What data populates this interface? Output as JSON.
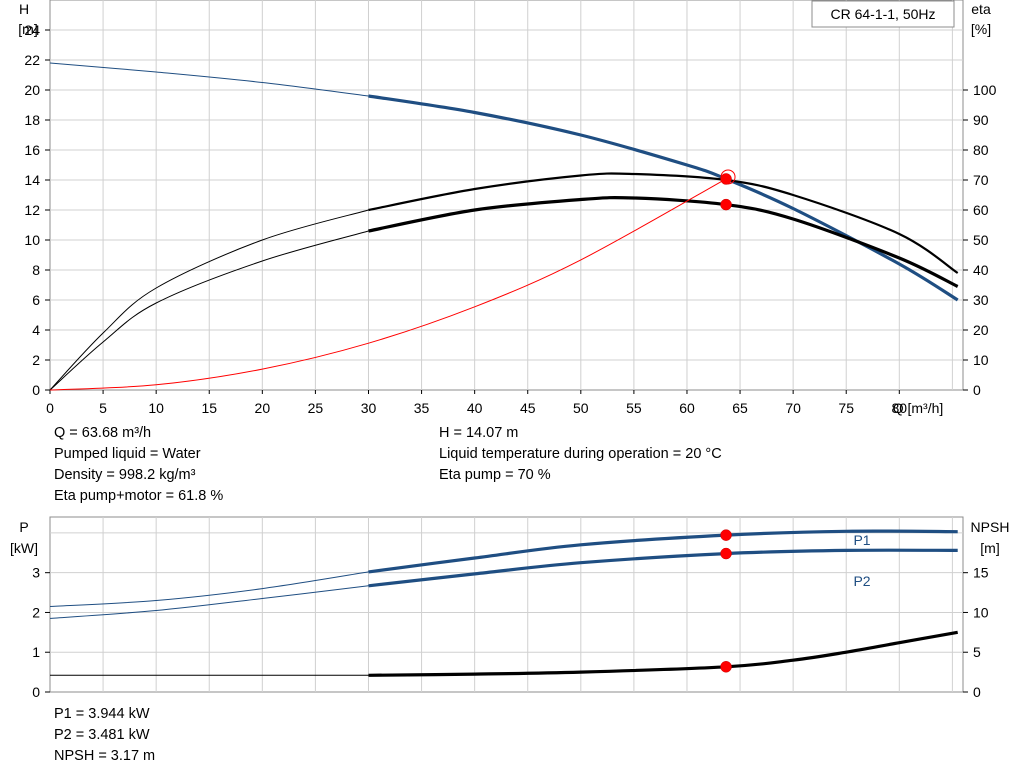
{
  "chart_data": [
    {
      "type": "line",
      "legend_box": "CR 64-1-1, 50Hz",
      "y_label_left": [
        "H",
        "[m]"
      ],
      "y_label_right": [
        "eta",
        "[%]"
      ],
      "x_label": "Q [m³/h]",
      "xlim": [
        0,
        86
      ],
      "x_ticks": [
        "0",
        "5",
        "10",
        "15",
        "20",
        "25",
        "30",
        "35",
        "40",
        "45",
        "50",
        "55",
        "60",
        "65",
        "70",
        "75",
        "80"
      ],
      "ylim_left": [
        0,
        26
      ],
      "y_ticks_left": [
        "0",
        "2",
        "4",
        "6",
        "8",
        "10",
        "12",
        "14",
        "16",
        "18",
        "20",
        "22",
        "24"
      ],
      "ylim_right": [
        0,
        130
      ],
      "y_ticks_right": [
        "0",
        "10",
        "20",
        "30",
        "40",
        "50",
        "60",
        "70",
        "80",
        "90",
        "100"
      ],
      "grid": true,
      "series": [
        {
          "name": "H",
          "axis": "left",
          "color": "#1f4e82",
          "thin_until_x": 30,
          "x": [
            0,
            10,
            20,
            30,
            40,
            50,
            60,
            63.68,
            70,
            80,
            85.5
          ],
          "y": [
            21.8,
            21.2,
            20.5,
            19.6,
            18.5,
            17.0,
            15.0,
            14.07,
            12.1,
            8.4,
            6.0
          ]
        },
        {
          "name": "Eta pump",
          "axis": "right",
          "color": "#000000",
          "thin_until_x": 30,
          "x": [
            0,
            5,
            10,
            20,
            30,
            40,
            50,
            55,
            63.68,
            70,
            80,
            85.5
          ],
          "y": [
            0,
            19,
            34,
            50,
            60,
            67,
            71.5,
            72,
            70,
            65,
            52,
            39
          ]
        },
        {
          "name": "Eta pump+motor",
          "axis": "right",
          "color": "#000000",
          "thin_until_x": 30,
          "bold": true,
          "x": [
            0,
            5,
            10,
            20,
            30,
            40,
            50,
            55,
            63.68,
            70,
            80,
            85.5
          ],
          "y": [
            0,
            16,
            29,
            43,
            53,
            60,
            63.5,
            64,
            61.8,
            57,
            44,
            34.5
          ]
        },
        {
          "name": "System curve",
          "axis": "left",
          "color": "#ff0000",
          "thin_until_x": 999,
          "x": [
            0,
            10,
            20,
            30,
            40,
            50,
            63.68
          ],
          "y": [
            0,
            0.35,
            1.39,
            3.12,
            5.55,
            8.67,
            14.07
          ]
        }
      ],
      "operating_points": [
        {
          "x": 63.68,
          "y": 14.07,
          "axis": "left",
          "double": true
        },
        {
          "x": 63.68,
          "y": 61.8,
          "axis": "right"
        }
      ]
    },
    {
      "type": "line",
      "y_label_left": [
        "P",
        "[kW]"
      ],
      "y_label_right": [
        "NPSH",
        "[m]"
      ],
      "xlim": [
        0,
        86
      ],
      "ylim_left": [
        0,
        4.4
      ],
      "y_ticks_left": [
        "0",
        "1",
        "2",
        "3"
      ],
      "ylim_right": [
        0,
        22
      ],
      "y_ticks_right": [
        "0",
        "5",
        "10",
        "15"
      ],
      "grid": true,
      "series": [
        {
          "name": "P1",
          "axis": "left",
          "color": "#1f4e82",
          "thin_until_x": 30,
          "label_pos": "above",
          "x": [
            0,
            10,
            20,
            30,
            40,
            50,
            63.68,
            75,
            85.5
          ],
          "y": [
            2.15,
            2.3,
            2.6,
            3.02,
            3.37,
            3.7,
            3.944,
            4.04,
            4.03
          ]
        },
        {
          "name": "P2",
          "axis": "left",
          "color": "#1f4e82",
          "thin_until_x": 30,
          "label_pos": "below",
          "x": [
            0,
            10,
            20,
            30,
            40,
            50,
            63.68,
            75,
            85.5
          ],
          "y": [
            1.85,
            2.05,
            2.35,
            2.67,
            2.97,
            3.25,
            3.481,
            3.56,
            3.56
          ]
        },
        {
          "name": "NPSH",
          "axis": "right",
          "color": "#000000",
          "thin_until_x": 30,
          "bold": true,
          "x": [
            0,
            30,
            40,
            50,
            63.68,
            70,
            75,
            80,
            85.5
          ],
          "y": [
            2.1,
            2.1,
            2.25,
            2.5,
            3.17,
            4.0,
            5.0,
            6.2,
            7.5
          ]
        }
      ],
      "operating_points": [
        {
          "x": 63.68,
          "y": 3.944,
          "axis": "left"
        },
        {
          "x": 63.68,
          "y": 3.481,
          "axis": "left"
        },
        {
          "x": 63.68,
          "y": 3.17,
          "axis": "right"
        }
      ]
    }
  ],
  "info_top_left": [
    "Q = 63.68 m³/h",
    "Pumped liquid = Water",
    "Density = 998.2 kg/m³",
    "Eta pump+motor = 61.8 %"
  ],
  "info_top_right": [
    "H = 14.07 m",
    "Liquid temperature during operation = 20 °C",
    "Eta pump = 70 %"
  ],
  "info_bottom": [
    "P1 = 3.944 kW",
    "P2 = 3.481 kW",
    "NPSH = 3.17 m"
  ]
}
